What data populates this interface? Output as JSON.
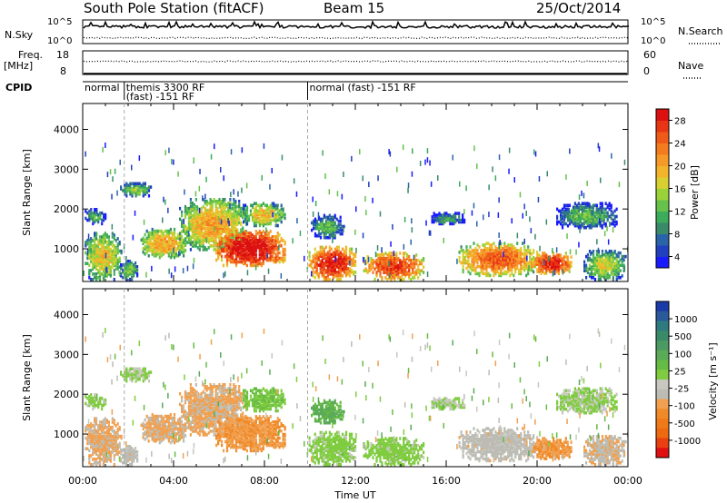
{
  "header": {
    "station": "South Pole Station (fitACF)",
    "beam": "Beam 15",
    "date": "25/Oct/2014"
  },
  "strips": {
    "nsky": {
      "left_label": "N.Sky",
      "left_ticks": [
        "10^5",
        "10^0"
      ],
      "right_ticks": [
        "10^5",
        "10^0"
      ],
      "right_label": "N.Search"
    },
    "freq": {
      "left_label_1": "Freq.",
      "left_label_2": "[MHz]",
      "left_ticks": [
        "18",
        "8"
      ],
      "right_ticks": [
        "60",
        "0"
      ],
      "right_label": "Nave"
    },
    "cpid": {
      "label": "CPID",
      "segments": [
        {
          "start": 0.0,
          "end": 1.83,
          "lines": [
            "normal"
          ]
        },
        {
          "start": 1.83,
          "end": 9.9,
          "lines": [
            "themis 3300 RF",
            "(fast) -151 RF"
          ]
        },
        {
          "start": 9.9,
          "end": 24.0,
          "lines": [
            "normal (fast) -151 RF"
          ]
        }
      ]
    }
  },
  "axes": {
    "ylabel": "Slant Range [km]",
    "xlabel": "Time UT",
    "xticks": [
      "00:00",
      "04:00",
      "08:00",
      "12:00",
      "16:00",
      "20:00",
      "00:00"
    ],
    "yticks": [
      "1000",
      "2000",
      "3000",
      "4000"
    ]
  },
  "colorbars": {
    "power": {
      "label": "Power [dB]",
      "ticks": [
        "4",
        "8",
        "12",
        "16",
        "20",
        "24",
        "28"
      ],
      "colors": [
        "#1a1aff",
        "#2040c0",
        "#2a64a8",
        "#3a8a6a",
        "#3cab5a",
        "#66c24a",
        "#9ad23a",
        "#d8d030",
        "#f2b42a",
        "#f59a28",
        "#f47b1e",
        "#ef5a18",
        "#e83614",
        "#dc1010"
      ]
    },
    "velocity": {
      "label": "Velocity [m s⁻¹]",
      "ticks": [
        "1000",
        "500",
        "100",
        "25",
        "-25",
        "-100",
        "-500",
        "-1000"
      ],
      "colors": [
        "#1a3aa8",
        "#2a5a9a",
        "#2e7a80",
        "#3a8a6a",
        "#4a9a62",
        "#5aaa58",
        "#66bb44",
        "#80cc40",
        "#c8c8c0",
        "#bcbcb4",
        "#f0a050",
        "#f08a28",
        "#f07a18",
        "#ee6a10",
        "#e84010",
        "#e01010"
      ]
    }
  },
  "chart_data": {
    "type": "heatmap",
    "panels": [
      {
        "name": "Power",
        "units": "dB",
        "range": [
          2,
          30
        ]
      },
      {
        "name": "Velocity",
        "units": "m/s",
        "range": [
          -1100,
          1100
        ]
      }
    ],
    "x_range_hours_ut": [
      0,
      24
    ],
    "y_range_km": [
      180,
      4650
    ],
    "cpid_boundaries_hours_ut": [
      1.83,
      9.9
    ],
    "echo_regions": [
      {
        "t0": 0.05,
        "t1": 1.7,
        "r0": 250,
        "r1": 1450,
        "power": 14,
        "velocity": -300
      },
      {
        "t0": 0.05,
        "t1": 1.0,
        "r0": 1650,
        "r1": 2050,
        "power": 7,
        "velocity": 30
      },
      {
        "t0": 1.6,
        "t1": 2.4,
        "r0": 250,
        "r1": 750,
        "power": 10,
        "velocity": -200
      },
      {
        "t0": 1.6,
        "t1": 3.0,
        "r0": 2350,
        "r1": 2700,
        "power": 10,
        "velocity": 20
      },
      {
        "t0": 2.5,
        "t1": 4.6,
        "r0": 800,
        "r1": 1550,
        "power": 16,
        "velocity": -300
      },
      {
        "t0": 4.2,
        "t1": 7.2,
        "r0": 1000,
        "r1": 2300,
        "power": 16,
        "velocity": -300
      },
      {
        "t0": 5.8,
        "t1": 8.9,
        "r0": 600,
        "r1": 1500,
        "power": 26,
        "velocity": -400
      },
      {
        "t0": 7.0,
        "t1": 8.9,
        "r0": 1600,
        "r1": 2200,
        "power": 14,
        "velocity": 120
      },
      {
        "t0": 9.9,
        "t1": 12.0,
        "r0": 250,
        "r1": 1100,
        "power": 24,
        "velocity": 60
      },
      {
        "t0": 10.0,
        "t1": 11.5,
        "r0": 1300,
        "r1": 1900,
        "power": 8,
        "velocity": 300
      },
      {
        "t0": 12.3,
        "t1": 15.0,
        "r0": 250,
        "r1": 950,
        "power": 22,
        "velocity": 60
      },
      {
        "t0": 15.3,
        "t1": 16.8,
        "r0": 1650,
        "r1": 1950,
        "power": 7,
        "velocity": 20
      },
      {
        "t0": 16.5,
        "t1": 20.0,
        "r0": 350,
        "r1": 1200,
        "power": 20,
        "velocity": -200
      },
      {
        "t0": 19.7,
        "t1": 21.5,
        "r0": 400,
        "r1": 950,
        "power": 24,
        "velocity": -400
      },
      {
        "t0": 20.8,
        "t1": 23.5,
        "r0": 1550,
        "r1": 2200,
        "power": 8,
        "velocity": 20
      },
      {
        "t0": 22.0,
        "t1": 23.9,
        "r0": 250,
        "r1": 1000,
        "power": 12,
        "velocity": -250
      }
    ]
  }
}
